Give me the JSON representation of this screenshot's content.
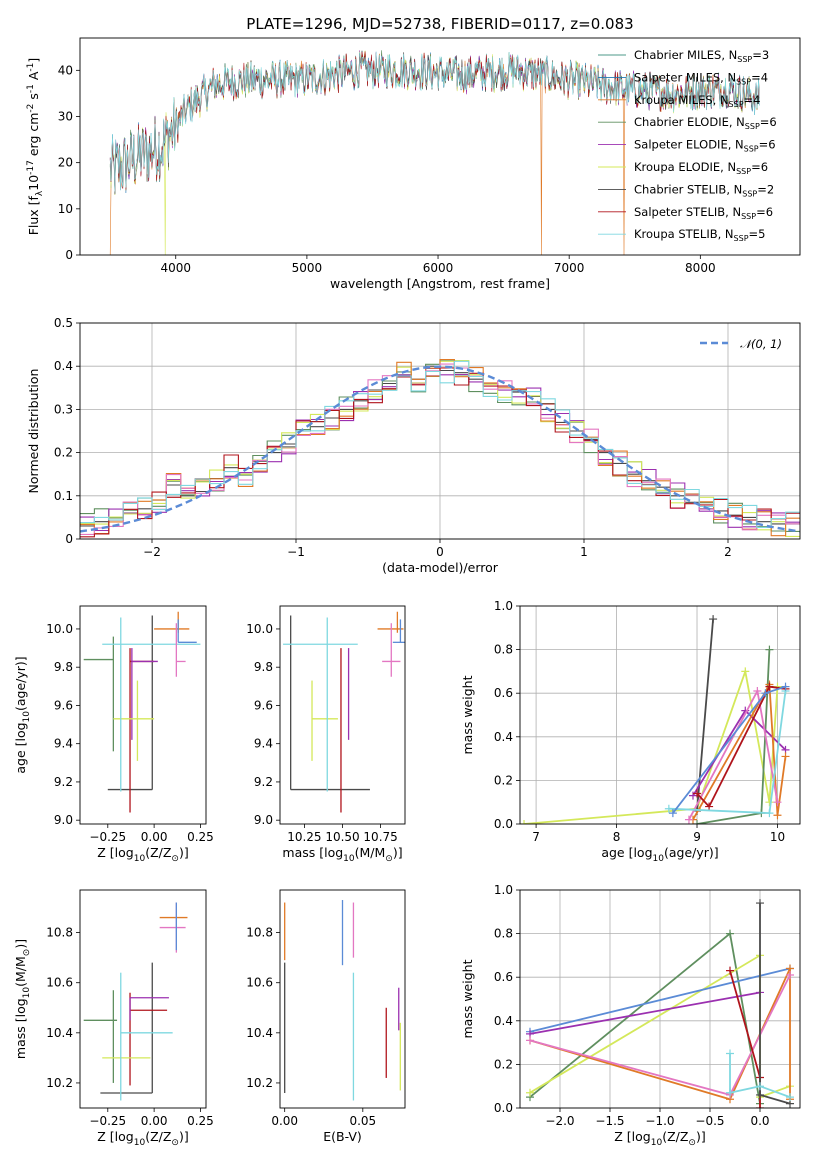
{
  "figure_title": "PLATE=1296, MJD=52738, FIBERID=0117, z=0.083",
  "colors": {
    "chabrier_miles": "#4e9a8a",
    "salpeter_miles": "#1f77b4",
    "kroupa_miles": "#e07a27",
    "chabrier_elodie": "#5f8f5f",
    "salpeter_elodie": "#9b30b0",
    "kroupa_elodie": "#d4e85a",
    "chabrier_stelib": "#4a4a4a",
    "salpeter_stelib": "#b0141c",
    "kroupa_stelib": "#7fd8e0",
    "normal": "#5b8bd6",
    "extra_blue": "#5b8bd6",
    "extra_pink": "#e377c2"
  },
  "chart_data": [
    {
      "id": "spectrum",
      "type": "line",
      "xlabel": "wavelength [Angstrom, rest frame]",
      "ylabel": "Flux [f$_\\lambda$10$^{-17}$ erg cm$^{-2}$ s$^{-1}$ A$^{-1}$]",
      "xlim": [
        3270,
        8760
      ],
      "ylim": [
        0,
        47
      ],
      "xticks": [
        4000,
        5000,
        6000,
        7000,
        8000
      ],
      "yticks": [
        0,
        10,
        20,
        30,
        40
      ],
      "legend_location": "right",
      "legend": [
        "Chabrier MILES, N_SSP=3",
        "Salpeter MILES, N_SSP=4",
        "Kroupa MILES, N_SSP=4",
        "Chabrier ELODIE, N_SSP=6",
        "Salpeter ELODIE, N_SSP=6",
        "Kroupa ELODIE, N_SSP=6",
        "Chabrier STELIB, N_SSP=2",
        "Salpeter STELIB, N_SSP=6",
        "Kroupa STELIB, N_SSP=5"
      ],
      "series_keys": [
        "chabrier_miles",
        "salpeter_miles",
        "kroupa_miles",
        "chabrier_elodie",
        "salpeter_elodie",
        "kroupa_elodie",
        "chabrier_stelib",
        "salpeter_stelib",
        "kroupa_stelib"
      ],
      "continuum_x": [
        3500,
        3700,
        3900,
        4100,
        4300,
        4600,
        5000,
        5400,
        5800,
        6200,
        6600,
        7000,
        7400,
        7800,
        8200,
        8450
      ],
      "continuum_y": [
        18,
        21,
        24,
        32,
        37,
        38,
        38,
        40,
        40,
        39,
        40,
        38,
        36,
        35,
        36,
        34
      ],
      "data_x_range": [
        3500,
        8450
      ],
      "dropouts": [
        {
          "x": 3920,
          "series": "kroupa_elodie"
        },
        {
          "x": 6790,
          "series": "kroupa_miles"
        },
        {
          "x": 7420,
          "series": "kroupa_miles"
        },
        {
          "x": 3500,
          "series": "kroupa_miles"
        }
      ]
    },
    {
      "id": "residuals",
      "type": "histogram",
      "xlabel": "(data-model)/error",
      "ylabel": "Normed distribution",
      "xlim": [
        -2.5,
        2.5
      ],
      "ylim": [
        0,
        0.5
      ],
      "xticks": [
        -2,
        -1,
        0,
        1,
        2
      ],
      "yticks": [
        0,
        0.1,
        0.2,
        0.3,
        0.4,
        0.5
      ],
      "grid": true,
      "legend": [
        "𝒩(0, 1)"
      ],
      "legend_location": "upper right",
      "bin_width": 0.1,
      "bin_start": -2.5,
      "bins_chabrier_stelib": [
        0.03,
        0.04,
        0.05,
        0.06,
        0.07,
        0.09,
        0.125,
        0.1,
        0.11,
        0.14,
        0.165,
        0.15,
        0.18,
        0.2,
        0.22,
        0.25,
        0.26,
        0.28,
        0.3,
        0.32,
        0.345,
        0.36,
        0.38,
        0.37,
        0.4,
        0.39,
        0.385,
        0.37,
        0.36,
        0.345,
        0.34,
        0.33,
        0.3,
        0.27,
        0.25,
        0.23,
        0.2,
        0.175,
        0.15,
        0.135,
        0.12,
        0.1,
        0.085,
        0.07,
        0.065,
        0.055,
        0.05,
        0.04,
        0.035,
        0.035
      ]
    },
    {
      "id": "age_vs_Z",
      "type": "errorbar",
      "xlabel": "Z [log$_{10}$(Z/Z$_\\odot$)]",
      "ylabel": "age  [log$_{10}$(age/yr)]",
      "xlim": [
        -0.4,
        0.28
      ],
      "ylim": [
        8.98,
        10.12
      ],
      "xticks": [
        -0.25,
        0.0,
        0.25
      ],
      "xticklabels": [
        "−0.25",
        "0.00",
        "0.25"
      ],
      "yticks": [
        9.0,
        9.2,
        9.4,
        9.6,
        9.8,
        10.0
      ],
      "points": [
        {
          "c": "chabrier_stelib",
          "x": -0.01,
          "xerr": [
            0.24,
            0.0
          ],
          "y": 9.16,
          "yerr": [
            0.0,
            0.91
          ]
        },
        {
          "c": "chabrier_elodie",
          "x": -0.22,
          "xerr": [
            0.16,
            0.0
          ],
          "y": 9.84,
          "yerr": [
            0.48,
            0.12
          ]
        },
        {
          "c": "salpeter_stelib",
          "x": -0.13,
          "xerr": [
            0.0,
            0.13
          ],
          "y": 9.83,
          "yerr": [
            0.79,
            0.07
          ]
        },
        {
          "c": "salpeter_elodie",
          "x": -0.12,
          "xerr": [
            0.0,
            0.14
          ],
          "y": 9.83,
          "yerr": [
            0.41,
            0.07
          ]
        },
        {
          "c": "kroupa_elodie",
          "x": -0.09,
          "xerr": [
            0.13,
            0.09
          ],
          "y": 9.53,
          "yerr": [
            0.22,
            0.2
          ]
        },
        {
          "c": "kroupa_stelib",
          "x": -0.18,
          "xerr": [
            0.1,
            0.43
          ],
          "y": 9.92,
          "yerr": [
            0.77,
            0.14
          ]
        },
        {
          "c": "kroupa_miles",
          "x": 0.13,
          "xerr": [
            0.13,
            0.06
          ],
          "y": 10.0,
          "yerr": [
            0.02,
            0.09
          ]
        },
        {
          "c": "extra_pink",
          "x": 0.12,
          "xerr": [
            0.0,
            0.05
          ],
          "y": 9.83,
          "yerr": [
            0.08,
            0.2
          ]
        },
        {
          "c": "extra_blue",
          "x": 0.13,
          "xerr": [
            0.0,
            0.1
          ],
          "y": 9.93,
          "yerr": [
            0.0,
            0.12
          ]
        }
      ]
    },
    {
      "id": "age_vs_mass",
      "type": "errorbar",
      "xlabel": "mass [log$_{10}$(M/M$_\\odot$)]",
      "ylabel": "",
      "xlim": [
        10.09,
        10.91
      ],
      "ylim": [
        8.98,
        10.12
      ],
      "xticks": [
        10.25,
        10.5,
        10.75
      ],
      "xticklabels": [
        "10.25",
        "10.50",
        "10.75"
      ],
      "yticks": [
        9.0,
        9.2,
        9.4,
        9.6,
        9.8,
        10.0
      ],
      "points": [
        {
          "c": "chabrier_stelib",
          "x": 10.16,
          "xerr": [
            0.0,
            0.52
          ],
          "y": 9.16,
          "yerr": [
            0.0,
            0.91
          ]
        },
        {
          "c": "salpeter_stelib",
          "x": 10.49,
          "xerr": [
            0.0,
            0.0
          ],
          "y": 9.83,
          "yerr": [
            0.79,
            0.07
          ]
        },
        {
          "c": "salpeter_elodie",
          "x": 10.54,
          "xerr": [
            0.0,
            0.0
          ],
          "y": 9.83,
          "yerr": [
            0.41,
            0.07
          ]
        },
        {
          "c": "kroupa_elodie",
          "x": 10.3,
          "xerr": [
            0.0,
            0.17
          ],
          "y": 9.53,
          "yerr": [
            0.22,
            0.2
          ]
        },
        {
          "c": "kroupa_stelib",
          "x": 10.4,
          "xerr": [
            0.29,
            0.2
          ],
          "y": 9.92,
          "yerr": [
            0.77,
            0.14
          ]
        },
        {
          "c": "kroupa_miles",
          "x": 10.86,
          "xerr": [
            0.13,
            0.04
          ],
          "y": 10.0,
          "yerr": [
            0.02,
            0.09
          ]
        },
        {
          "c": "extra_pink",
          "x": 10.82,
          "xerr": [
            0.06,
            0.06
          ],
          "y": 9.83,
          "yerr": [
            0.08,
            0.2
          ]
        },
        {
          "c": "extra_blue",
          "x": 10.88,
          "xerr": [
            0.05,
            0.03
          ],
          "y": 9.93,
          "yerr": [
            0.0,
            0.12
          ]
        }
      ]
    },
    {
      "id": "weight_vs_age",
      "type": "line",
      "xlabel": "age  [log$_{10}$(age/yr)]",
      "ylabel": "mass weight",
      "xlim": [
        6.8,
        10.28
      ],
      "ylim": [
        0,
        1.0
      ],
      "xticks": [
        7,
        8,
        9,
        10
      ],
      "yticks": [
        0,
        0.2,
        0.4,
        0.6,
        0.8,
        1.0
      ],
      "grid": true,
      "series": [
        {
          "c": "kroupa_elodie",
          "x": [
            6.85,
            9.0,
            9.6,
            9.9,
            10.0
          ],
          "y": [
            0.0,
            0.07,
            0.7,
            0.1,
            0.63
          ]
        },
        {
          "c": "chabrier_elodie",
          "x": [
            9.0,
            9.8,
            9.9
          ],
          "y": [
            0.0,
            0.05,
            0.8
          ]
        },
        {
          "c": "chabrier_stelib",
          "x": [
            9.0,
            9.2
          ],
          "y": [
            0.06,
            0.94
          ]
        },
        {
          "c": "salpeter_elodie",
          "x": [
            8.95,
            9.6,
            10.1
          ],
          "y": [
            0.13,
            0.52,
            0.34
          ]
        },
        {
          "c": "kroupa_miles",
          "x": [
            8.95,
            9.9,
            10.0,
            10.1
          ],
          "y": [
            0.02,
            0.64,
            0.04,
            0.31
          ]
        },
        {
          "c": "extra_pink",
          "x": [
            8.9,
            9.75,
            10.0
          ],
          "y": [
            0.02,
            0.61,
            0.1
          ]
        },
        {
          "c": "salpeter_stelib",
          "x": [
            9.0,
            9.15,
            9.9,
            10.1
          ],
          "y": [
            0.14,
            0.08,
            0.63,
            0.62
          ]
        },
        {
          "c": "kroupa_stelib",
          "x": [
            8.65,
            9.9,
            10.1
          ],
          "y": [
            0.07,
            0.05,
            0.61
          ]
        },
        {
          "c": "extra_blue",
          "x": [
            8.7,
            9.85,
            10.1
          ],
          "y": [
            0.05,
            0.6,
            0.63
          ]
        }
      ]
    },
    {
      "id": "mass_vs_Z",
      "type": "errorbar",
      "xlabel": "Z [log$_{10}$(Z/Z$_\\odot$)]",
      "ylabel": "mass [log$_{10}$(M/M$_\\odot$)]",
      "xlim": [
        -0.4,
        0.28
      ],
      "ylim": [
        10.1,
        10.97
      ],
      "xticks": [
        -0.25,
        0.0,
        0.25
      ],
      "xticklabels": [
        "−0.25",
        "0.00",
        "0.25"
      ],
      "yticks": [
        10.2,
        10.4,
        10.6,
        10.8
      ],
      "points": [
        {
          "c": "chabrier_stelib",
          "x": -0.01,
          "xerr": [
            0.28,
            0.0
          ],
          "y": 10.16,
          "yerr": [
            0.0,
            0.52
          ]
        },
        {
          "c": "chabrier_elodie",
          "x": -0.22,
          "xerr": [
            0.16,
            0.02
          ],
          "y": 10.45,
          "yerr": [
            0.25,
            0.12
          ]
        },
        {
          "c": "salpeter_stelib",
          "x": -0.13,
          "xerr": [
            0.0,
            0.2
          ],
          "y": 10.49,
          "yerr": [
            0.3,
            0.07
          ]
        },
        {
          "c": "salpeter_elodie",
          "x": -0.13,
          "xerr": [
            0.0,
            0.21
          ],
          "y": 10.54,
          "yerr": [
            0.09,
            0.0
          ]
        },
        {
          "c": "kroupa_elodie",
          "x": -0.12,
          "xerr": [
            0.16,
            0.1
          ],
          "y": 10.3,
          "yerr": [
            0.0,
            0.0
          ]
        },
        {
          "c": "kroupa_stelib",
          "x": -0.18,
          "xerr": [
            0.0,
            0.28
          ],
          "y": 10.4,
          "yerr": [
            0.27,
            0.24
          ]
        },
        {
          "c": "kroupa_miles",
          "x": 0.12,
          "xerr": [
            0.09,
            0.06
          ],
          "y": 10.86,
          "yerr": [
            0.0,
            0.0
          ]
        },
        {
          "c": "extra_pink",
          "x": 0.12,
          "xerr": [
            0.09,
            0.05
          ],
          "y": 10.82,
          "yerr": [
            0.1,
            0.1
          ]
        },
        {
          "c": "extra_blue",
          "x": 0.12,
          "xerr": [
            0.0,
            0.0
          ],
          "y": 10.82,
          "yerr": [
            0.09,
            0.1
          ]
        }
      ]
    },
    {
      "id": "mass_vs_ebv",
      "type": "errorbar",
      "xlabel": "E(B-V)",
      "ylabel": "",
      "xlim": [
        -0.003,
        0.077
      ],
      "ylim": [
        10.1,
        10.97
      ],
      "xticks": [
        0.0,
        0.05
      ],
      "xticklabels": [
        "0.00",
        "0.05"
      ],
      "yticks": [
        10.2,
        10.4,
        10.6,
        10.8
      ],
      "points": [
        {
          "c": "chabrier_stelib",
          "x": 0.0,
          "xerr": [
            0.0,
            0.0
          ],
          "y": 10.16,
          "yerr": [
            0.0,
            0.52
          ]
        },
        {
          "c": "kroupa_miles",
          "x": 0.0,
          "xerr": [
            0.0,
            0.0
          ],
          "y": 10.82,
          "yerr": [
            0.13,
            0.1
          ]
        },
        {
          "c": "extra_blue",
          "x": 0.037,
          "xerr": [
            0.0,
            0.0
          ],
          "y": 10.8,
          "yerr": [
            0.13,
            0.13
          ]
        },
        {
          "c": "kroupa_stelib",
          "x": 0.044,
          "xerr": [
            0.0,
            0.0
          ],
          "y": 10.4,
          "yerr": [
            0.27,
            0.24
          ]
        },
        {
          "c": "extra_pink",
          "x": 0.044,
          "xerr": [
            0.0,
            0.0
          ],
          "y": 10.8,
          "yerr": [
            0.1,
            0.12
          ]
        },
        {
          "c": "salpeter_stelib",
          "x": 0.065,
          "xerr": [
            0.0,
            0.0
          ],
          "y": 10.36,
          "yerr": [
            0.14,
            0.14
          ]
        },
        {
          "c": "salpeter_elodie",
          "x": 0.073,
          "xerr": [
            0.0,
            0.0
          ],
          "y": 10.5,
          "yerr": [
            0.09,
            0.08
          ]
        },
        {
          "c": "kroupa_elodie",
          "x": 0.074,
          "xerr": [
            0.0,
            0.0
          ],
          "y": 10.3,
          "yerr": [
            0.13,
            0.14
          ]
        }
      ]
    },
    {
      "id": "weight_vs_Z",
      "type": "line",
      "xlabel": "Z [log$_{10}$(Z/Z$_\\odot$)]",
      "ylabel": "mass weight",
      "xlim": [
        -2.4,
        0.4
      ],
      "ylim": [
        0,
        1.0
      ],
      "xticks": [
        -2.0,
        -1.5,
        -1.0,
        -0.5,
        0.0
      ],
      "xticklabels": [
        "−2.0",
        "−1.5",
        "−1.0",
        "−0.5",
        "0.0"
      ],
      "yticks": [
        0,
        0.2,
        0.4,
        0.6,
        0.8,
        1.0
      ],
      "grid": true,
      "series": [
        {
          "c": "chabrier_elodie",
          "x": [
            -2.3,
            -0.3,
            0.0
          ],
          "y": [
            0.05,
            0.8,
            0.02
          ]
        },
        {
          "c": "kroupa_elodie",
          "x": [
            -2.3,
            0.0,
            0.0,
            0.3
          ],
          "y": [
            0.07,
            0.7,
            0.05,
            0.1
          ]
        },
        {
          "c": "extra_blue",
          "x": [
            -2.3,
            0.3
          ],
          "y": [
            0.35,
            0.64
          ]
        },
        {
          "c": "salpeter_elodie",
          "x": [
            -2.3,
            0.0
          ],
          "y": [
            0.34,
            0.53
          ]
        },
        {
          "c": "kroupa_miles",
          "x": [
            -2.3,
            -0.3,
            0.3,
            0.3
          ],
          "y": [
            0.31,
            0.04,
            0.64,
            0.04
          ]
        },
        {
          "c": "extra_pink",
          "x": [
            -2.3,
            -0.3,
            0.3
          ],
          "y": [
            0.31,
            0.06,
            0.61
          ]
        },
        {
          "c": "salpeter_stelib",
          "x": [
            -0.3,
            0.0,
            0.0
          ],
          "y": [
            0.63,
            0.14,
            0.0
          ]
        },
        {
          "c": "chabrier_stelib",
          "x": [
            0.0,
            0.0,
            0.3
          ],
          "y": [
            0.94,
            0.06,
            0.02
          ]
        },
        {
          "c": "kroupa_stelib",
          "x": [
            -0.3,
            -0.3,
            0.0,
            0.3
          ],
          "y": [
            0.25,
            0.07,
            0.1,
            0.05
          ]
        }
      ]
    }
  ]
}
